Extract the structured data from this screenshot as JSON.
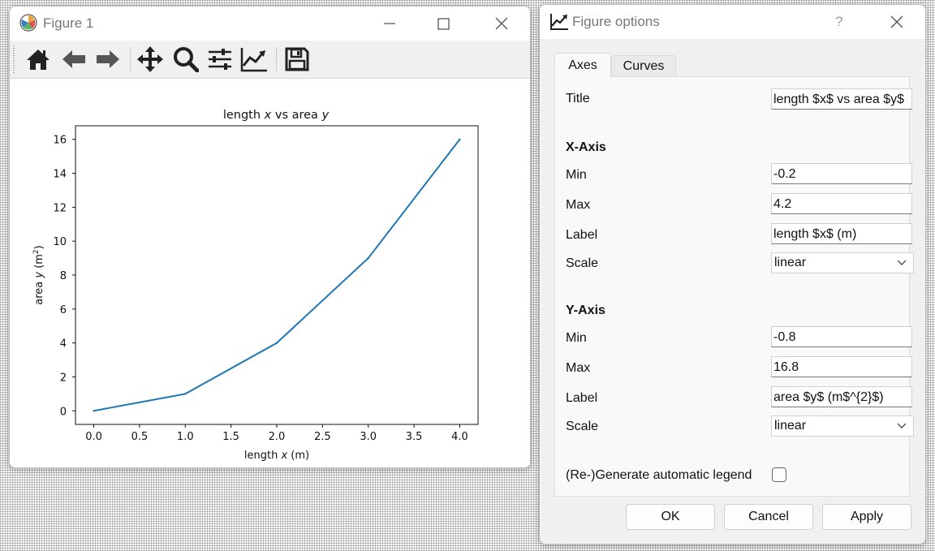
{
  "figure_window": {
    "title": "Figure 1",
    "toolbar": {
      "home": "home-icon",
      "back": "back-arrow-icon",
      "forward": "forward-arrow-icon",
      "pan": "pan-icon",
      "zoom": "zoom-icon",
      "subplots": "subplots-icon",
      "customize": "customize-icon",
      "save": "save-icon"
    }
  },
  "chart_data": {
    "type": "line",
    "title_pre": "length ",
    "title_var1": "x",
    "title_mid": " vs area ",
    "title_var2": "y",
    "xlabel_pre": "length ",
    "xlabel_var": "x",
    "xlabel_post": " (m)",
    "ylabel_pre": "area ",
    "ylabel_var": "y",
    "ylabel_post": " (m",
    "ylabel_sup": "2",
    "ylabel_end": ")",
    "x": [
      0,
      1,
      2,
      3,
      4
    ],
    "y": [
      0,
      1,
      4,
      9,
      16
    ],
    "xlim": [
      -0.2,
      4.2
    ],
    "ylim": [
      -0.8,
      16.8
    ],
    "xticks": [
      "0.0",
      "0.5",
      "1.0",
      "1.5",
      "2.0",
      "2.5",
      "3.0",
      "3.5",
      "4.0"
    ],
    "yticks": [
      "0",
      "2",
      "4",
      "6",
      "8",
      "10",
      "12",
      "14",
      "16"
    ],
    "line_color": "#1f77b4",
    "grid": false
  },
  "options_dialog": {
    "title": "Figure options",
    "help": "?",
    "tabs": [
      "Axes",
      "Curves"
    ],
    "title_label": "Title",
    "title_value": "length $x$ vs area $y$",
    "x_axis": {
      "heading": "X-Axis",
      "min_label": "Min",
      "min_value": "-0.2",
      "max_label": "Max",
      "max_value": "4.2",
      "label_label": "Label",
      "label_value": "length $x$ (m)",
      "scale_label": "Scale",
      "scale_value": "linear"
    },
    "y_axis": {
      "heading": "Y-Axis",
      "min_label": "Min",
      "min_value": "-0.8",
      "max_label": "Max",
      "max_value": "16.8",
      "label_label": "Label",
      "label_value": "area $y$ (m$^{2}$)",
      "scale_label": "Scale",
      "scale_value": "linear"
    },
    "legend_label": "(Re-)Generate automatic legend",
    "legend_checked": false,
    "buttons": {
      "ok": "OK",
      "cancel": "Cancel",
      "apply": "Apply"
    }
  }
}
